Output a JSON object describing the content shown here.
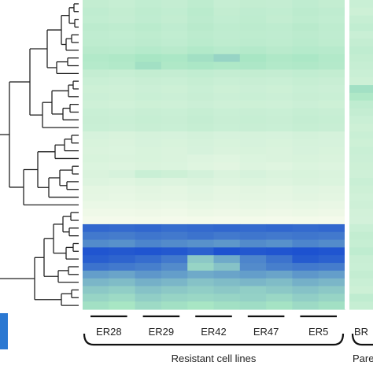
{
  "chart_data": {
    "type": "heatmap",
    "row_count": 40,
    "group_labels": [
      "ER28",
      "ER29",
      "ER42",
      "ER47",
      "ER5",
      "BR"
    ],
    "group_captions": [
      "Resistant cell lines",
      "Pare"
    ],
    "colors": {
      "low": "#fbfcee",
      "mid": "#a8e6c4",
      "high": "#1a4fd0",
      "color_key": "#2b78d2"
    },
    "values": [
      [
        0.34,
        0.32,
        0.35,
        0.33,
        0.37,
        0.32,
        0.34,
        0.33,
        0.36,
        0.34,
        0.3
      ],
      [
        0.36,
        0.34,
        0.37,
        0.35,
        0.39,
        0.34,
        0.36,
        0.35,
        0.38,
        0.36,
        0.28
      ],
      [
        0.35,
        0.33,
        0.36,
        0.34,
        0.38,
        0.35,
        0.37,
        0.34,
        0.37,
        0.35,
        0.32
      ],
      [
        0.38,
        0.37,
        0.39,
        0.36,
        0.4,
        0.37,
        0.38,
        0.37,
        0.4,
        0.37,
        0.35
      ],
      [
        0.36,
        0.35,
        0.37,
        0.35,
        0.38,
        0.36,
        0.37,
        0.36,
        0.38,
        0.36,
        0.3
      ],
      [
        0.37,
        0.36,
        0.38,
        0.36,
        0.39,
        0.37,
        0.38,
        0.37,
        0.39,
        0.37,
        0.33
      ],
      [
        0.4,
        0.39,
        0.42,
        0.4,
        0.44,
        0.41,
        0.43,
        0.4,
        0.42,
        0.41,
        0.36
      ],
      [
        0.44,
        0.46,
        0.5,
        0.48,
        0.52,
        0.56,
        0.5,
        0.46,
        0.48,
        0.44,
        0.34
      ],
      [
        0.42,
        0.44,
        0.52,
        0.46,
        0.48,
        0.46,
        0.47,
        0.44,
        0.45,
        0.43,
        0.32
      ],
      [
        0.33,
        0.32,
        0.34,
        0.33,
        0.35,
        0.33,
        0.34,
        0.33,
        0.35,
        0.34,
        0.3
      ],
      [
        0.3,
        0.29,
        0.31,
        0.3,
        0.32,
        0.3,
        0.31,
        0.3,
        0.32,
        0.31,
        0.28
      ],
      [
        0.28,
        0.27,
        0.29,
        0.28,
        0.3,
        0.28,
        0.29,
        0.28,
        0.3,
        0.29,
        0.52
      ],
      [
        0.29,
        0.28,
        0.3,
        0.29,
        0.31,
        0.29,
        0.3,
        0.29,
        0.31,
        0.3,
        0.46
      ],
      [
        0.27,
        0.26,
        0.28,
        0.27,
        0.29,
        0.27,
        0.28,
        0.27,
        0.29,
        0.28,
        0.36
      ],
      [
        0.3,
        0.29,
        0.31,
        0.3,
        0.32,
        0.3,
        0.31,
        0.3,
        0.32,
        0.31,
        0.33
      ],
      [
        0.31,
        0.3,
        0.32,
        0.31,
        0.33,
        0.31,
        0.32,
        0.31,
        0.33,
        0.32,
        0.3
      ],
      [
        0.3,
        0.29,
        0.31,
        0.3,
        0.32,
        0.3,
        0.31,
        0.3,
        0.32,
        0.31,
        0.28
      ],
      [
        0.22,
        0.21,
        0.23,
        0.22,
        0.24,
        0.22,
        0.23,
        0.22,
        0.24,
        0.23,
        0.3
      ],
      [
        0.21,
        0.2,
        0.22,
        0.21,
        0.23,
        0.21,
        0.22,
        0.21,
        0.23,
        0.22,
        0.28
      ],
      [
        0.2,
        0.19,
        0.21,
        0.2,
        0.22,
        0.2,
        0.21,
        0.2,
        0.22,
        0.21,
        0.3
      ],
      [
        0.21,
        0.2,
        0.21,
        0.2,
        0.18,
        0.17,
        0.19,
        0.2,
        0.21,
        0.2,
        0.29
      ],
      [
        0.19,
        0.18,
        0.2,
        0.19,
        0.17,
        0.15,
        0.18,
        0.17,
        0.19,
        0.18,
        0.28
      ],
      [
        0.2,
        0.22,
        0.3,
        0.28,
        0.24,
        0.2,
        0.22,
        0.2,
        0.21,
        0.2,
        0.27
      ],
      [
        0.18,
        0.17,
        0.19,
        0.18,
        0.2,
        0.18,
        0.19,
        0.18,
        0.2,
        0.19,
        0.3
      ],
      [
        0.14,
        0.13,
        0.15,
        0.14,
        0.16,
        0.14,
        0.15,
        0.14,
        0.16,
        0.15,
        0.28
      ],
      [
        0.13,
        0.12,
        0.14,
        0.13,
        0.15,
        0.13,
        0.14,
        0.13,
        0.15,
        0.14,
        0.26
      ],
      [
        0.1,
        0.1,
        0.11,
        0.1,
        0.12,
        0.11,
        0.12,
        0.11,
        0.12,
        0.11,
        0.27
      ],
      [
        0.07,
        0.07,
        0.08,
        0.07,
        0.09,
        0.08,
        0.09,
        0.08,
        0.09,
        0.08,
        0.25
      ],
      [
        0.04,
        0.04,
        0.05,
        0.04,
        0.05,
        0.04,
        0.05,
        0.04,
        0.05,
        0.04,
        0.24
      ],
      [
        0.92,
        0.91,
        0.92,
        0.9,
        0.91,
        0.92,
        0.91,
        0.92,
        0.91,
        0.92,
        0.3
      ],
      [
        0.86,
        0.85,
        0.87,
        0.86,
        0.88,
        0.86,
        0.87,
        0.86,
        0.87,
        0.86,
        0.34
      ],
      [
        0.8,
        0.78,
        0.82,
        0.8,
        0.78,
        0.76,
        0.8,
        0.78,
        0.82,
        0.8,
        0.32
      ],
      [
        0.98,
        0.97,
        0.98,
        0.97,
        0.94,
        0.99,
        0.97,
        0.98,
        0.99,
        0.98,
        0.36
      ],
      [
        0.95,
        0.93,
        0.9,
        0.86,
        0.6,
        0.7,
        0.82,
        0.88,
        0.96,
        0.94,
        0.31
      ],
      [
        0.88,
        0.86,
        0.84,
        0.8,
        0.56,
        0.62,
        0.8,
        0.84,
        0.86,
        0.85,
        0.3
      ],
      [
        0.74,
        0.72,
        0.76,
        0.74,
        0.7,
        0.72,
        0.74,
        0.72,
        0.76,
        0.74,
        0.33
      ],
      [
        0.66,
        0.64,
        0.68,
        0.66,
        0.62,
        0.64,
        0.66,
        0.64,
        0.68,
        0.66,
        0.3
      ],
      [
        0.6,
        0.58,
        0.62,
        0.6,
        0.58,
        0.6,
        0.58,
        0.6,
        0.62,
        0.6,
        0.28
      ],
      [
        0.56,
        0.54,
        0.58,
        0.56,
        0.55,
        0.56,
        0.57,
        0.55,
        0.58,
        0.56,
        0.36
      ],
      [
        0.52,
        0.5,
        0.54,
        0.52,
        0.5,
        0.52,
        0.53,
        0.51,
        0.54,
        0.52,
        0.32
      ]
    ]
  }
}
